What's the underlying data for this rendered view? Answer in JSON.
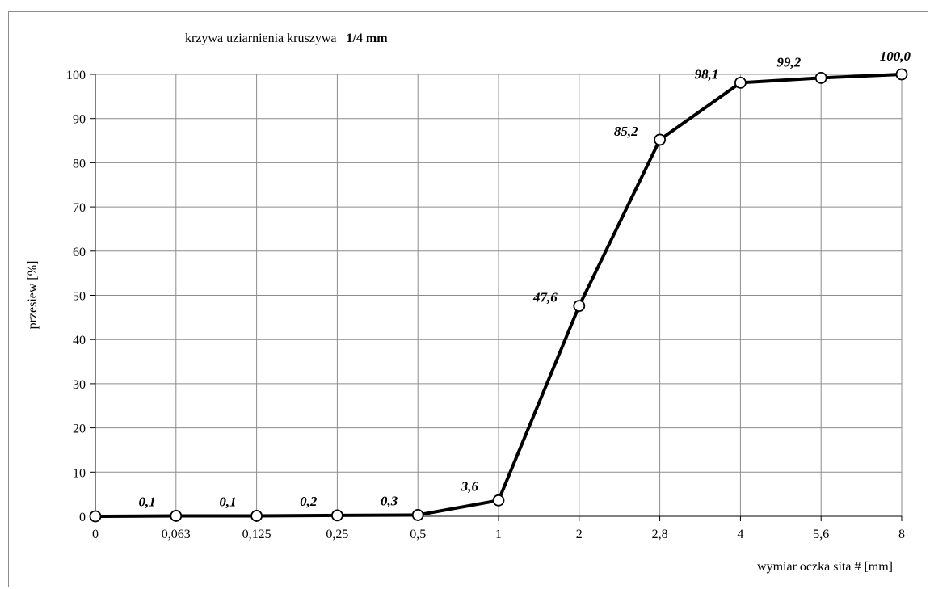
{
  "chart_data": {
    "type": "line",
    "title": "krzywa uziarnienia kruszywa",
    "title_bold": "1/4 mm",
    "xlabel": "wymiar oczka sita # [mm]",
    "ylabel": "przesiew [%]",
    "categories": [
      "0",
      "0,063",
      "0,125",
      "0,25",
      "0,5",
      "1",
      "2",
      "2,8",
      "4",
      "5,6",
      "8"
    ],
    "values": [
      0,
      0.1,
      0.1,
      0.2,
      0.3,
      3.6,
      47.6,
      85.2,
      98.1,
      99.2,
      100.0
    ],
    "data_labels": [
      "",
      "0,1",
      "0,1",
      "0,2",
      "0,3",
      "3,6",
      "47,6",
      "85,2",
      "98,1",
      "99,2",
      "100,0"
    ],
    "ylim": [
      0,
      100
    ],
    "yticks": [
      "0",
      "10",
      "20",
      "30",
      "40",
      "50",
      "60",
      "70",
      "80",
      "90",
      "100"
    ],
    "grid": true,
    "colors": {
      "line": "#000000",
      "grid": "#8c8c8c",
      "marker_fill": "#ffffff"
    }
  }
}
